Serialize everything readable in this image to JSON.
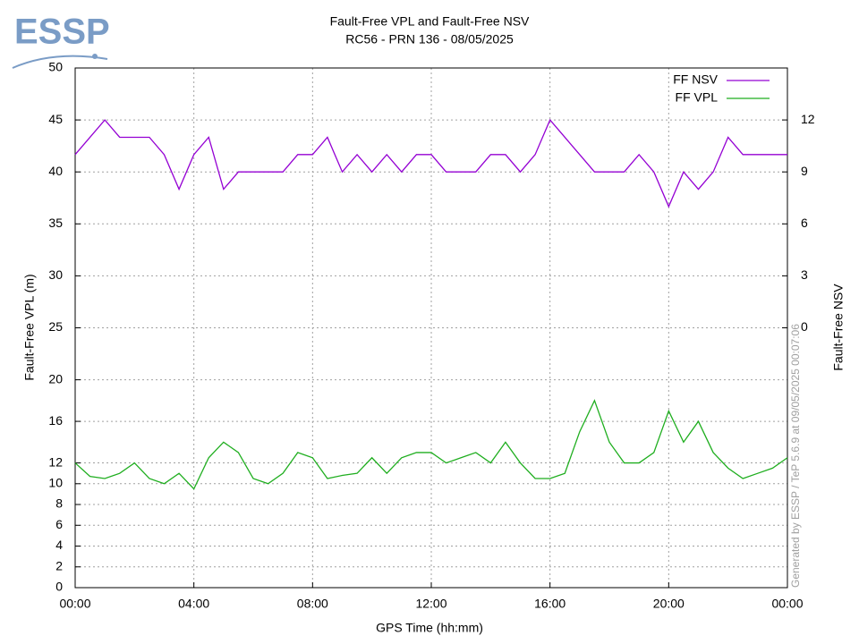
{
  "chart_data": {
    "type": "line",
    "logo_text": "ESSP",
    "title": "Fault-Free VPL and Fault-Free NSV",
    "subtitle": "RC56 - PRN 136 - 08/05/2025",
    "x_label": "GPS Time (hh:mm)",
    "y_label": "Fault-Free VPL (m)",
    "y2_label": "Fault-Free NSV",
    "credit": "Generated by ESSP / TeP 5.6.9 at 09/05/2025 00:07:06",
    "grid": true,
    "legend": "top-right",
    "xlim": [
      0,
      24
    ],
    "xticks": [
      {
        "value": 0,
        "label": "00:00"
      },
      {
        "value": 4,
        "label": "04:00"
      },
      {
        "value": 8,
        "label": "08:00"
      },
      {
        "value": 12,
        "label": "12:00"
      },
      {
        "value": 16,
        "label": "16:00"
      },
      {
        "value": 20,
        "label": "20:00"
      },
      {
        "value": 24,
        "label": "00:00"
      }
    ],
    "ylim": [
      0,
      50
    ],
    "yticks": [
      0,
      2,
      4,
      6,
      8,
      10,
      12,
      16,
      20,
      25,
      30,
      35,
      40,
      45,
      50
    ],
    "y2lim": [
      -15,
      15
    ],
    "y2ticks": [
      0,
      3,
      6,
      9,
      12
    ],
    "x": [
      0,
      0.5,
      1,
      1.5,
      2,
      2.5,
      3,
      3.5,
      4,
      4.5,
      5,
      5.5,
      6,
      6.5,
      7,
      7.5,
      8,
      8.5,
      9,
      9.5,
      10,
      10.5,
      11,
      11.5,
      12,
      12.5,
      13,
      13.5,
      14,
      14.5,
      15,
      15.5,
      16,
      16.5,
      17,
      17.5,
      18,
      18.5,
      19,
      19.5,
      20,
      20.5,
      21,
      21.5,
      22,
      22.5,
      23,
      23.5,
      24
    ],
    "series": [
      {
        "name": "FF NSV",
        "color": "#9400d3",
        "axis": "y2",
        "values": [
          10,
          11,
          12,
          11,
          11,
          11,
          10,
          8,
          10,
          11,
          8,
          9,
          9,
          9,
          9,
          10,
          10,
          11,
          9,
          10,
          9,
          10,
          9,
          10,
          10,
          9,
          9,
          9,
          10,
          10,
          9,
          10,
          12,
          11,
          10,
          9,
          9,
          9,
          10,
          9,
          7,
          9,
          8,
          9,
          11,
          10,
          10,
          10,
          10
        ]
      },
      {
        "name": "FF VPL",
        "color": "#1fae1f",
        "values": [
          12,
          10.7,
          10.5,
          11,
          12,
          10.5,
          10,
          11,
          9.5,
          12.5,
          14,
          13,
          10.5,
          10,
          11,
          13,
          12.5,
          10.5,
          10.8,
          11,
          12.5,
          11,
          12.5,
          13,
          13,
          12,
          12.5,
          13,
          12,
          14,
          12,
          10.5,
          10.5,
          11,
          15,
          18,
          14,
          12,
          12,
          13,
          17,
          14,
          16,
          13,
          11.5,
          10.5,
          11,
          11.5,
          12.5
        ]
      }
    ]
  }
}
